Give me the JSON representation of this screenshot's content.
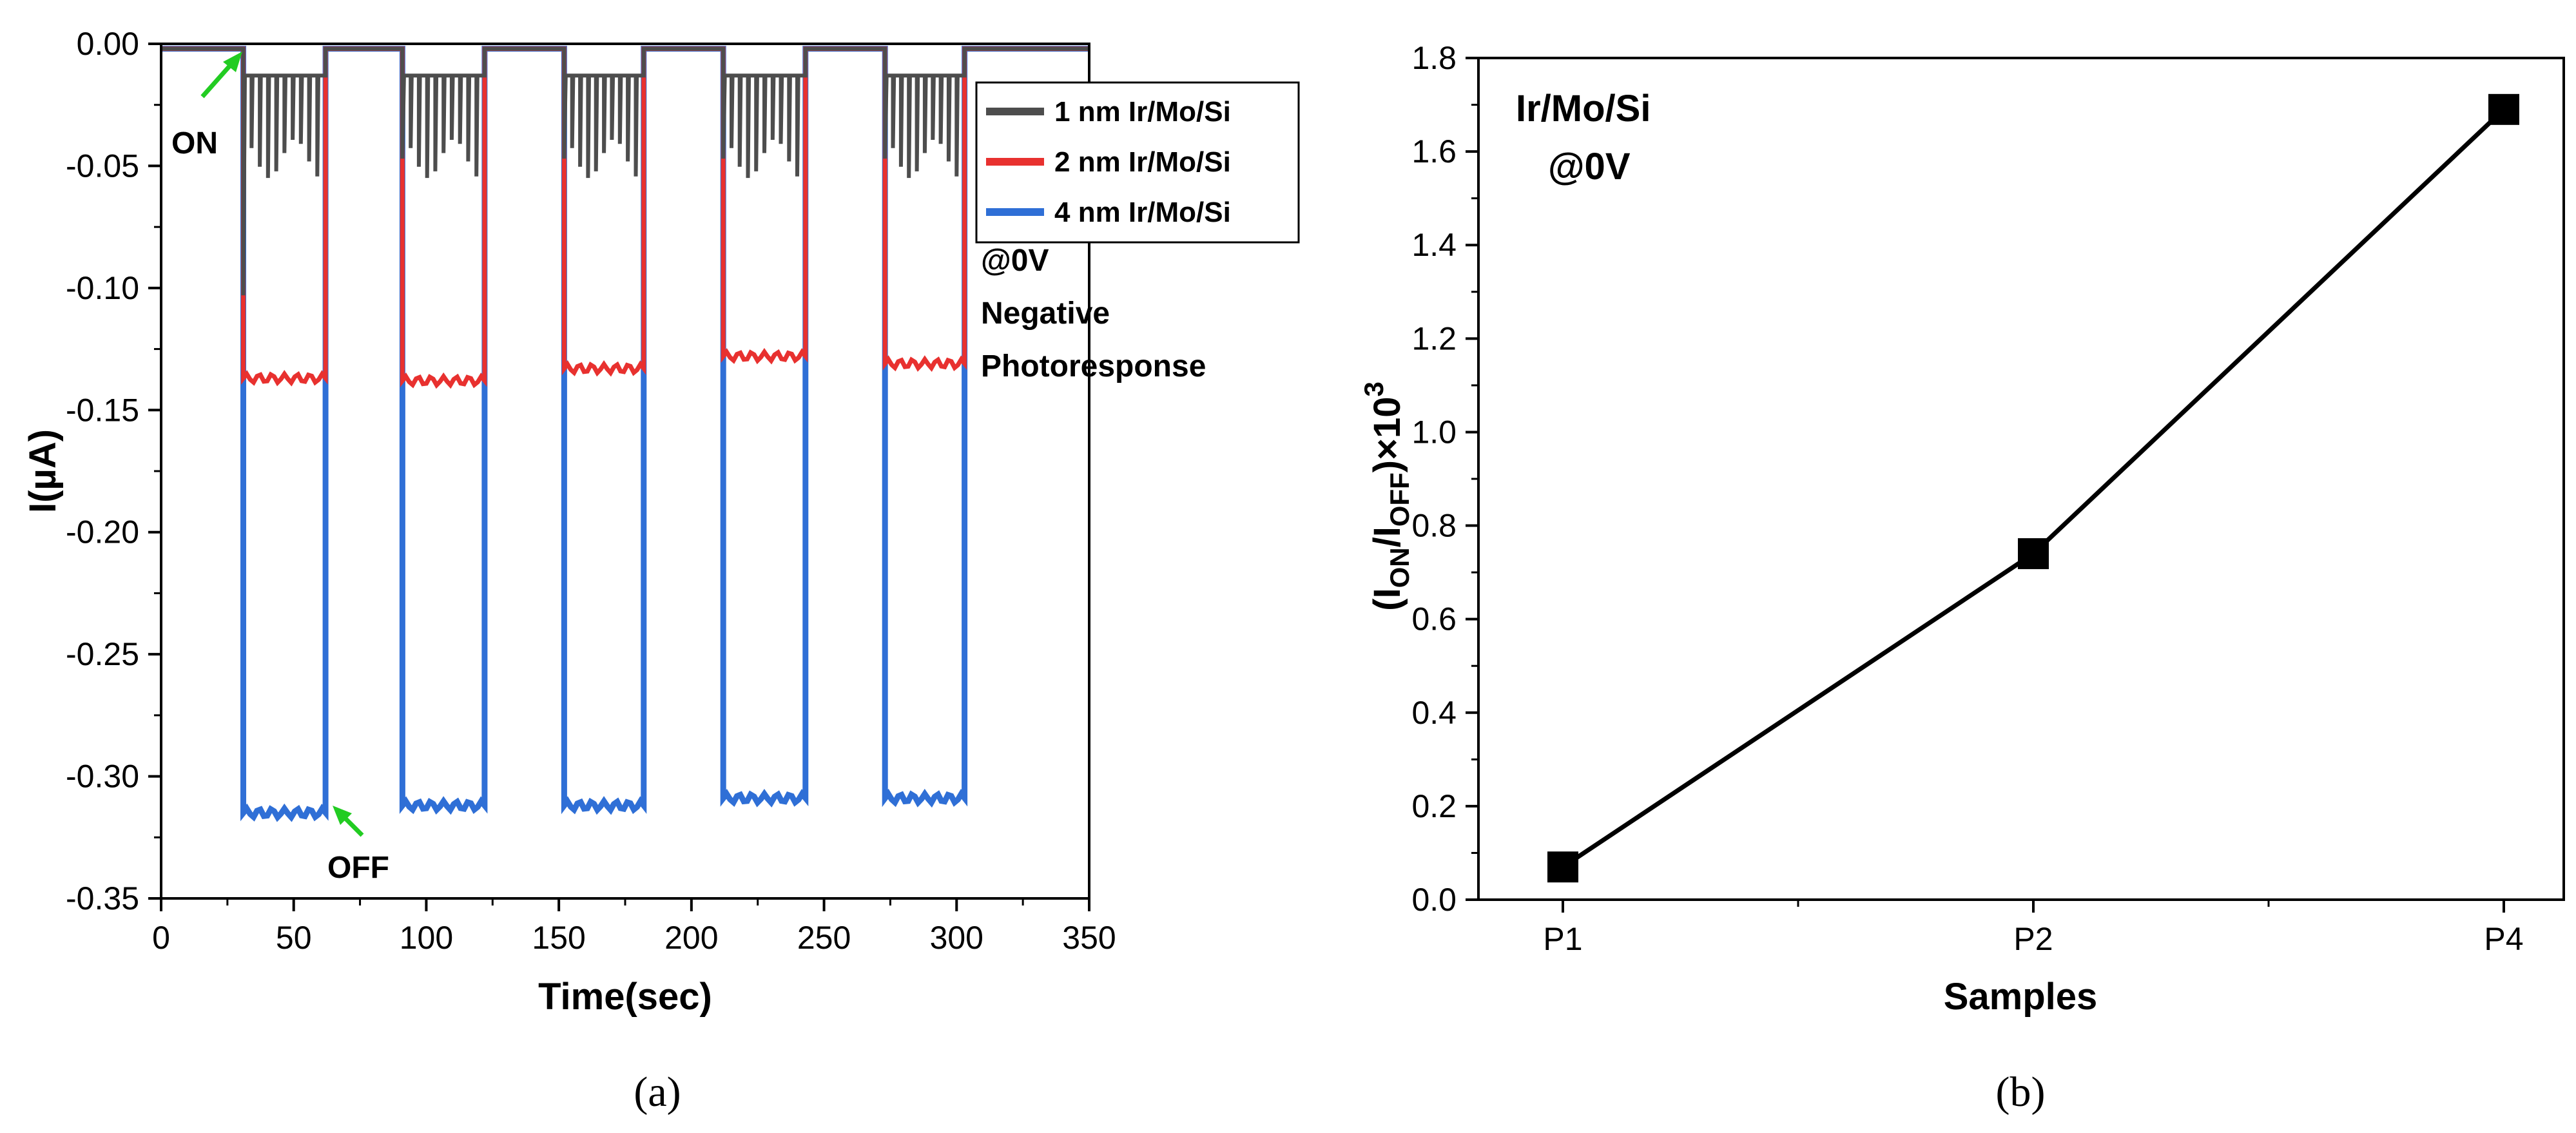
{
  "chart_data": [
    {
      "type": "line",
      "panel_label": "(a)",
      "xlabel": "Time(sec)",
      "ylabel": "I(µA)",
      "xlim": [
        0,
        350
      ],
      "ylim": [
        -0.35,
        0.0
      ],
      "xticks": [
        "0",
        "50",
        "100",
        "150",
        "200",
        "250",
        "300",
        "350"
      ],
      "yticks": [
        "0.00",
        "-0.05",
        "-0.10",
        "-0.15",
        "-0.20",
        "-0.25",
        "-0.30",
        "-0.35"
      ],
      "on_times": [
        31,
        91,
        152,
        212,
        273
      ],
      "off_times": [
        62,
        122,
        182,
        243,
        303
      ],
      "series": [
        {
          "name": "1 nm Ir/Mo/Si",
          "color": "#4d4d4d",
          "off_level": -0.002,
          "on_level": -0.013,
          "spike_depth": -0.047,
          "first_spike": -0.103
        },
        {
          "name": "2 nm Ir/Mo/Si",
          "color": "#e8312f",
          "off_level": -0.002,
          "on_levels": [
            -0.137,
            -0.138,
            -0.133,
            -0.128,
            -0.131
          ]
        },
        {
          "name": "4 nm Ir/Mo/Si",
          "color": "#2f6fd6",
          "off_level": -0.002,
          "on_levels": [
            -0.315,
            -0.312,
            -0.312,
            -0.309,
            -0.309
          ]
        }
      ],
      "annotations": {
        "on_label": "ON",
        "off_label": "OFF",
        "bias": "@0V",
        "response_line1": "Negative",
        "response_line2": "Photoresponse"
      }
    },
    {
      "type": "line",
      "panel_label": "(b)",
      "xlabel": "Samples",
      "ylabel_main": "(I",
      "ylabel_sub1": "ON",
      "ylabel_mid": "/I",
      "ylabel_sub2": "OFF",
      "ylabel_tail": ")×10",
      "ylabel_sup": "3",
      "categories": [
        "P1",
        "P2",
        "P4"
      ],
      "values": [
        0.07,
        0.74,
        1.69
      ],
      "ylim": [
        0.0,
        1.8
      ],
      "yticks": [
        "0.0",
        "0.2",
        "0.4",
        "0.6",
        "0.8",
        "1.0",
        "1.2",
        "1.4",
        "1.6",
        "1.8"
      ],
      "annotation_line1": "Ir/Mo/Si",
      "annotation_line2": "@0V"
    }
  ]
}
